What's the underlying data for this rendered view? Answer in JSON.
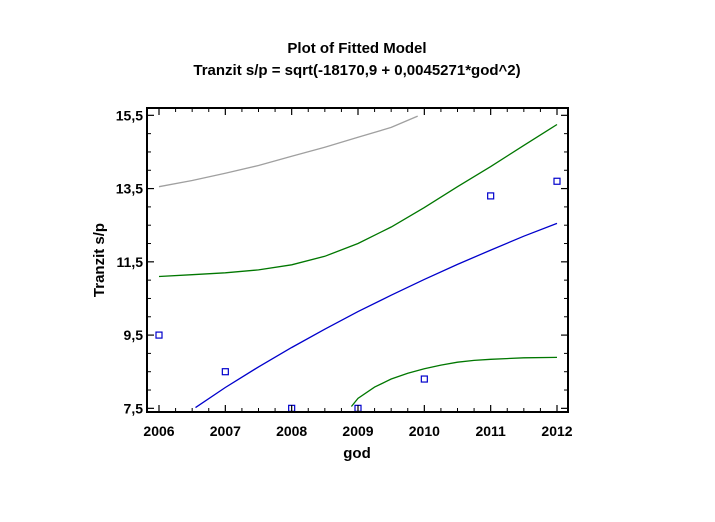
{
  "chart_data": {
    "type": "scatter",
    "title": "Plot of Fitted Model",
    "subtitle": "Tranzit s/p = sqrt(-18170,9 + 0,0045271*god^2)",
    "xlabel": "god",
    "ylabel": "Tranzit s/p",
    "xlim": [
      2006,
      2012
    ],
    "ylim": [
      7.4,
      15.7
    ],
    "x_ticks": [
      {
        "value": 2006,
        "label": "2006"
      },
      {
        "value": 2007,
        "label": "2007"
      },
      {
        "value": 2008,
        "label": "2008"
      },
      {
        "value": 2009,
        "label": "2009"
      },
      {
        "value": 2010,
        "label": "2010"
      },
      {
        "value": 2011,
        "label": "2011"
      },
      {
        "value": 2012,
        "label": "2012"
      }
    ],
    "y_ticks": [
      {
        "value": 7.5,
        "label": "7,5"
      },
      {
        "value": 9.5,
        "label": "9,5"
      },
      {
        "value": 11.5,
        "label": "11,5"
      },
      {
        "value": 13.5,
        "label": "13,5"
      },
      {
        "value": 15.5,
        "label": "15,5"
      }
    ],
    "grid": false,
    "legend": "none",
    "series": [
      {
        "role": "observed",
        "kind": "points",
        "color": "#0000cc",
        "x": [
          2006,
          2007,
          2008,
          2009,
          2010,
          2011,
          2012
        ],
        "y": [
          9.5,
          8.5,
          7.5,
          7.5,
          8.3,
          13.3,
          13.7
        ]
      },
      {
        "role": "fitted",
        "kind": "line",
        "color": "#0000cc",
        "x": [
          2006.55,
          2007,
          2007.5,
          2008,
          2008.5,
          2009,
          2009.5,
          2010,
          2010.5,
          2011,
          2011.5,
          2012
        ],
        "y": [
          7.52,
          8.07,
          8.63,
          9.16,
          9.66,
          10.14,
          10.59,
          11.02,
          11.43,
          11.82,
          12.2,
          12.55
        ]
      },
      {
        "role": "confidence-upper",
        "kind": "line",
        "color": "#007700",
        "x": [
          2006,
          2006.5,
          2007,
          2007.5,
          2008,
          2008.5,
          2009,
          2009.5,
          2010,
          2010.5,
          2011,
          2011.5,
          2012
        ],
        "y": [
          11.1,
          11.15,
          11.2,
          11.28,
          11.42,
          11.65,
          12.0,
          12.45,
          12.98,
          13.55,
          14.1,
          14.68,
          15.25
        ]
      },
      {
        "role": "confidence-lower",
        "kind": "line",
        "color": "#007700",
        "x": [
          2008.9,
          2009,
          2009.25,
          2009.5,
          2009.75,
          2010,
          2010.25,
          2010.5,
          2010.75,
          2011,
          2011.5,
          2012
        ],
        "y": [
          7.55,
          7.77,
          8.08,
          8.3,
          8.46,
          8.58,
          8.68,
          8.76,
          8.81,
          8.84,
          8.88,
          8.89
        ]
      },
      {
        "role": "prediction-upper",
        "kind": "line",
        "color": "#a0a0a0",
        "x": [
          2006,
          2006.5,
          2007,
          2007.5,
          2008,
          2008.5,
          2009,
          2009.5,
          2009.9
        ],
        "y": [
          13.55,
          13.72,
          13.92,
          14.13,
          14.38,
          14.63,
          14.9,
          15.17,
          15.48
        ]
      }
    ]
  }
}
